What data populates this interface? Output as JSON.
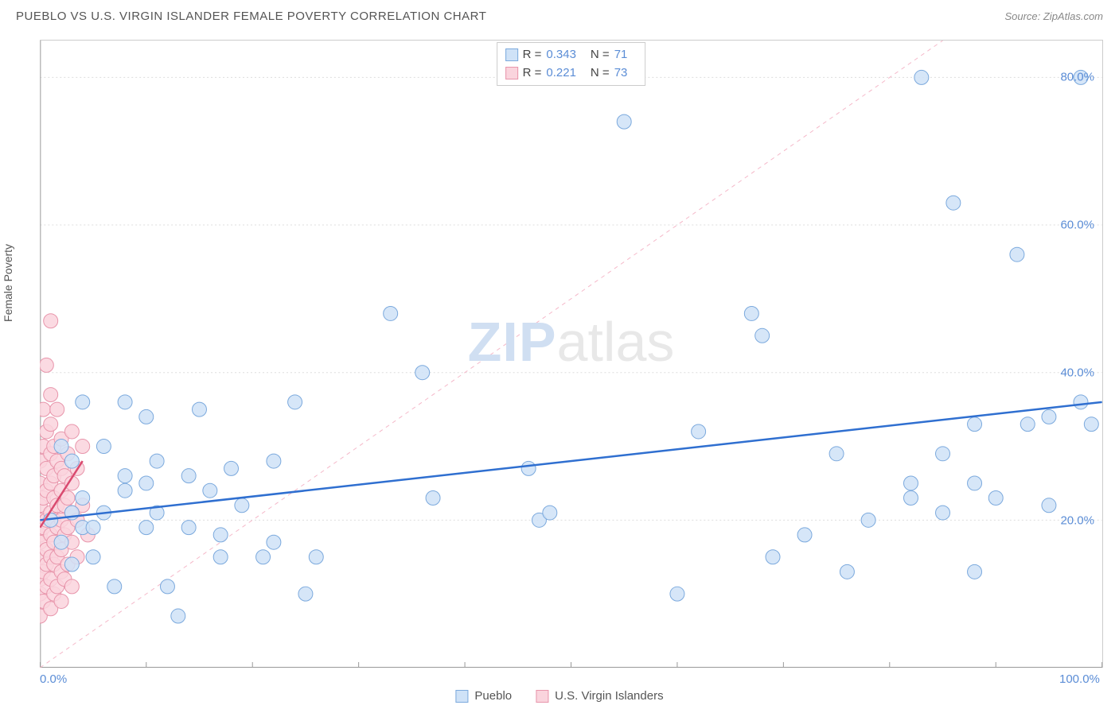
{
  "header": {
    "title": "PUEBLO VS U.S. VIRGIN ISLANDER FEMALE POVERTY CORRELATION CHART",
    "source": "Source: ZipAtlas.com"
  },
  "watermark": {
    "zip": "ZIP",
    "atlas": "atlas"
  },
  "chart": {
    "type": "scatter",
    "y_axis_label": "Female Poverty",
    "xlim": [
      0,
      100
    ],
    "ylim": [
      0,
      85
    ],
    "background_color": "#ffffff",
    "grid_color": "#dddddd",
    "border_color": "#cccccc",
    "x_ticks": [
      0,
      10,
      20,
      30,
      40,
      50,
      60,
      70,
      80,
      90,
      100
    ],
    "x_tick_labels": {
      "0": "0.0%",
      "100": "100.0%"
    },
    "y_ticks": [
      20,
      40,
      60,
      80
    ],
    "y_tick_labels": {
      "20": "20.0%",
      "40": "40.0%",
      "60": "60.0%",
      "80": "80.0%"
    },
    "diagonal_line_color": "#f5b8c9",
    "series": [
      {
        "name": "Pueblo",
        "color_fill": "#cfe2f7",
        "color_stroke": "#7ba9dd",
        "marker_radius": 9,
        "regression": {
          "x1": 0,
          "y1": 20,
          "x2": 100,
          "y2": 36,
          "color": "#2f6fd0",
          "width": 2.5
        },
        "R_label": "R =",
        "R": "0.343",
        "N_label": "N =",
        "N": "71",
        "points": [
          [
            1,
            20
          ],
          [
            2,
            30
          ],
          [
            2,
            17
          ],
          [
            3,
            21
          ],
          [
            3,
            28
          ],
          [
            3,
            14
          ],
          [
            4,
            23
          ],
          [
            4,
            19
          ],
          [
            4,
            36
          ],
          [
            5,
            19
          ],
          [
            5,
            15
          ],
          [
            6,
            30
          ],
          [
            6,
            21
          ],
          [
            7,
            11
          ],
          [
            8,
            36
          ],
          [
            8,
            26
          ],
          [
            8,
            24
          ],
          [
            10,
            34
          ],
          [
            10,
            25
          ],
          [
            10,
            19
          ],
          [
            11,
            28
          ],
          [
            11,
            21
          ],
          [
            12,
            11
          ],
          [
            13,
            7
          ],
          [
            14,
            26
          ],
          [
            14,
            19
          ],
          [
            15,
            35
          ],
          [
            16,
            24
          ],
          [
            17,
            18
          ],
          [
            17,
            15
          ],
          [
            18,
            27
          ],
          [
            19,
            22
          ],
          [
            21,
            15
          ],
          [
            22,
            28
          ],
          [
            22,
            17
          ],
          [
            24,
            36
          ],
          [
            25,
            10
          ],
          [
            26,
            15
          ],
          [
            33,
            48
          ],
          [
            36,
            40
          ],
          [
            37,
            23
          ],
          [
            46,
            27
          ],
          [
            47,
            20
          ],
          [
            48,
            21
          ],
          [
            55,
            74
          ],
          [
            60,
            10
          ],
          [
            62,
            32
          ],
          [
            67,
            48
          ],
          [
            68,
            45
          ],
          [
            69,
            15
          ],
          [
            72,
            18
          ],
          [
            75,
            29
          ],
          [
            76,
            13
          ],
          [
            78,
            20
          ],
          [
            82,
            25
          ],
          [
            82,
            23
          ],
          [
            83,
            80
          ],
          [
            85,
            29
          ],
          [
            85,
            21
          ],
          [
            86,
            63
          ],
          [
            88,
            33
          ],
          [
            88,
            25
          ],
          [
            88,
            13
          ],
          [
            90,
            23
          ],
          [
            92,
            56
          ],
          [
            93,
            33
          ],
          [
            95,
            34
          ],
          [
            95,
            22
          ],
          [
            98,
            80
          ],
          [
            98,
            36
          ],
          [
            99,
            33
          ]
        ]
      },
      {
        "name": "U.S. Virgin Islanders",
        "color_fill": "#fad4dd",
        "color_stroke": "#e895ab",
        "marker_radius": 9,
        "regression": {
          "x1": 0,
          "y1": 19,
          "x2": 4,
          "y2": 28,
          "color": "#d94a6f",
          "width": 2.5
        },
        "R_label": "R =",
        "R": "0.221",
        "N_label": "N =",
        "N": "73",
        "points": [
          [
            0,
            10
          ],
          [
            0,
            12
          ],
          [
            0,
            15
          ],
          [
            0,
            18
          ],
          [
            0,
            20
          ],
          [
            0,
            22
          ],
          [
            0,
            25
          ],
          [
            0,
            28
          ],
          [
            0,
            7
          ],
          [
            0,
            17
          ],
          [
            0.3,
            13
          ],
          [
            0.3,
            19
          ],
          [
            0.3,
            23
          ],
          [
            0.3,
            30
          ],
          [
            0.3,
            35
          ],
          [
            0.3,
            9
          ],
          [
            0.6,
            11
          ],
          [
            0.6,
            16
          ],
          [
            0.6,
            20
          ],
          [
            0.6,
            24
          ],
          [
            0.6,
            27
          ],
          [
            0.6,
            32
          ],
          [
            0.6,
            41
          ],
          [
            0.6,
            14
          ],
          [
            1,
            8
          ],
          [
            1,
            12
          ],
          [
            1,
            15
          ],
          [
            1,
            18
          ],
          [
            1,
            21
          ],
          [
            1,
            25
          ],
          [
            1,
            29
          ],
          [
            1,
            33
          ],
          [
            1,
            37
          ],
          [
            1,
            47
          ],
          [
            1.3,
            10
          ],
          [
            1.3,
            14
          ],
          [
            1.3,
            17
          ],
          [
            1.3,
            20
          ],
          [
            1.3,
            23
          ],
          [
            1.3,
            26
          ],
          [
            1.3,
            30
          ],
          [
            1.6,
            11
          ],
          [
            1.6,
            15
          ],
          [
            1.6,
            19
          ],
          [
            1.6,
            22
          ],
          [
            1.6,
            28
          ],
          [
            1.6,
            35
          ],
          [
            2,
            9
          ],
          [
            2,
            13
          ],
          [
            2,
            16
          ],
          [
            2,
            20
          ],
          [
            2,
            24
          ],
          [
            2,
            27
          ],
          [
            2,
            31
          ],
          [
            2.3,
            12
          ],
          [
            2.3,
            18
          ],
          [
            2.3,
            22
          ],
          [
            2.3,
            26
          ],
          [
            2.6,
            14
          ],
          [
            2.6,
            19
          ],
          [
            2.6,
            23
          ],
          [
            2.6,
            29
          ],
          [
            3,
            11
          ],
          [
            3,
            17
          ],
          [
            3,
            21
          ],
          [
            3,
            25
          ],
          [
            3,
            32
          ],
          [
            3.5,
            15
          ],
          [
            3.5,
            20
          ],
          [
            3.5,
            27
          ],
          [
            4,
            22
          ],
          [
            4,
            30
          ],
          [
            4.5,
            18
          ]
        ]
      }
    ]
  },
  "legend": {
    "items": [
      {
        "label": "Pueblo",
        "fill": "#cfe2f7",
        "stroke": "#7ba9dd"
      },
      {
        "label": "U.S. Virgin Islanders",
        "fill": "#fad4dd",
        "stroke": "#e895ab"
      }
    ]
  }
}
